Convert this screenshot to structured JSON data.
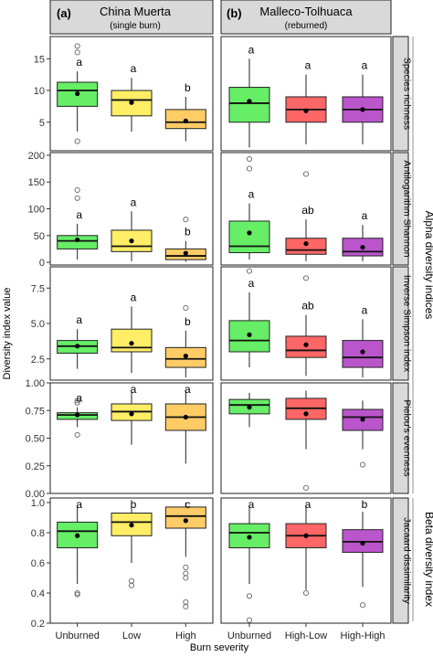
{
  "figure": {
    "x_title": "Burn severity",
    "y_title": "Diversity index value",
    "alpha_group_label": "Alpha diversity indices",
    "beta_group_label": "Beta diversity index"
  },
  "columns": [
    {
      "tag": "(a)",
      "name": "China Muerta",
      "subtitle": "(single burn)",
      "categories": [
        "Unburned",
        "Low",
        "High"
      ],
      "colors": [
        "#66ee66",
        "#ffee66",
        "#ffcc66"
      ]
    },
    {
      "tag": "(b)",
      "name": "Malleco-Tolhuaca",
      "subtitle": "(reburned)",
      "categories": [
        "Unburned",
        "High-Low",
        "High-High"
      ],
      "colors": [
        "#66ee66",
        "#ff6666",
        "#bb55cc"
      ]
    }
  ],
  "chart_data": [
    {
      "type": "box",
      "row": "Species richness",
      "y_ticks": [
        5,
        10,
        15
      ],
      "ylim": [
        0.5,
        18.5
      ],
      "panels": [
        {
          "boxes": [
            {
              "category": "Unburned",
              "q1": 7.5,
              "median": 10,
              "q3": 11.3,
              "whisker_low": 3.5,
              "whisker_high": 13,
              "mean": 9.5,
              "outliers": [
                2,
                16,
                17
              ],
              "letter": "a"
            },
            {
              "category": "Low",
              "q1": 6,
              "median": 8.5,
              "q3": 10,
              "whisker_low": 3.5,
              "whisker_high": 12,
              "mean": 8.1,
              "outliers": [],
              "letter": "a"
            },
            {
              "category": "High",
              "q1": 4,
              "median": 5,
              "q3": 7,
              "whisker_low": 2,
              "whisker_high": 9,
              "mean": 5.2,
              "outliers": [],
              "letter": "b"
            }
          ]
        },
        {
          "boxes": [
            {
              "category": "Unburned",
              "q1": 5,
              "median": 8,
              "q3": 10.5,
              "whisker_low": 1,
              "whisker_high": 15,
              "mean": 8.3,
              "outliers": [],
              "letter": "a"
            },
            {
              "category": "High-Low",
              "q1": 5,
              "median": 7,
              "q3": 9,
              "whisker_low": 1.5,
              "whisker_high": 12.5,
              "mean": 6.8,
              "outliers": [],
              "letter": "a"
            },
            {
              "category": "High-High",
              "q1": 5,
              "median": 7,
              "q3": 9,
              "whisker_low": 1.5,
              "whisker_high": 12.5,
              "mean": 7,
              "outliers": [],
              "letter": "a"
            }
          ]
        }
      ]
    },
    {
      "type": "box",
      "row": "Antilogarithm Shannon",
      "y_ticks": [
        0,
        50,
        100,
        150,
        200
      ],
      "ylim": [
        -5,
        205
      ],
      "panels": [
        {
          "boxes": [
            {
              "category": "Unburned",
              "q1": 25,
              "median": 40,
              "q3": 50,
              "whisker_low": 5,
              "whisker_high": 72,
              "mean": 42,
              "outliers": [
                120,
                135
              ],
              "letter": "a"
            },
            {
              "category": "Low",
              "q1": 20,
              "median": 30,
              "q3": 60,
              "whisker_low": 2,
              "whisker_high": 95,
              "mean": 40,
              "outliers": [],
              "letter": "a"
            },
            {
              "category": "High",
              "q1": 5,
              "median": 12,
              "q3": 25,
              "whisker_low": 1,
              "whisker_high": 40,
              "mean": 17,
              "outliers": [
                80
              ],
              "letter": "b"
            }
          ]
        },
        {
          "boxes": [
            {
              "category": "Unburned",
              "q1": 18,
              "median": 30,
              "q3": 77,
              "whisker_low": 5,
              "whisker_high": 110,
              "mean": 55,
              "outliers": [
                175,
                193
              ],
              "letter": "a"
            },
            {
              "category": "High-Low",
              "q1": 15,
              "median": 23,
              "q3": 45,
              "whisker_low": 2,
              "whisker_high": 80,
              "mean": 35,
              "outliers": [
                165
              ],
              "letter": "ab"
            },
            {
              "category": "High-High",
              "q1": 12,
              "median": 20,
              "q3": 45,
              "whisker_low": 2,
              "whisker_high": 70,
              "mean": 28,
              "outliers": [],
              "letter": "a"
            }
          ]
        }
      ]
    },
    {
      "type": "box",
      "row": "Inverse Simpson index",
      "y_ticks": [
        2.5,
        5.0,
        7.5
      ],
      "y_tick_labels": [
        "2.5",
        "5.0",
        "7.5"
      ],
      "ylim": [
        1,
        9
      ],
      "panels": [
        {
          "boxes": [
            {
              "category": "Unburned",
              "q1": 2.9,
              "median": 3.4,
              "q3": 3.8,
              "whisker_low": 1.8,
              "whisker_high": 4.6,
              "mean": 3.4,
              "outliers": [],
              "letter": "a"
            },
            {
              "category": "Low",
              "q1": 3.0,
              "median": 3.3,
              "q3": 4.6,
              "whisker_low": 1.5,
              "whisker_high": 6.2,
              "mean": 3.6,
              "outliers": [],
              "letter": "a"
            },
            {
              "category": "High",
              "q1": 1.9,
              "median": 2.5,
              "q3": 3.3,
              "whisker_low": 1.2,
              "whisker_high": 4.5,
              "mean": 2.7,
              "outliers": [
                6.1
              ],
              "letter": "b"
            }
          ]
        },
        {
          "boxes": [
            {
              "category": "Unburned",
              "q1": 3.0,
              "median": 3.8,
              "q3": 5.2,
              "whisker_low": 1.9,
              "whisker_high": 7.2,
              "mean": 4.2,
              "outliers": [
                8.7
              ],
              "letter": "a"
            },
            {
              "category": "High-Low",
              "q1": 2.6,
              "median": 3.1,
              "q3": 4.1,
              "whisker_low": 1.3,
              "whisker_high": 5.6,
              "mean": 3.5,
              "outliers": [
                8.2
              ],
              "letter": "ab"
            },
            {
              "category": "High-High",
              "q1": 1.9,
              "median": 2.6,
              "q3": 3.8,
              "whisker_low": 1.2,
              "whisker_high": 5.3,
              "mean": 3.0,
              "outliers": [],
              "letter": "a"
            }
          ]
        }
      ]
    },
    {
      "type": "box",
      "row": "Pielou's evenness",
      "y_ticks": [
        0.0,
        0.25,
        0.5,
        0.75,
        1.0
      ],
      "y_tick_labels": [
        "0.00",
        "0.25",
        "0.50",
        "0.75",
        "1.00"
      ],
      "ylim": [
        0,
        1
      ],
      "panels": [
        {
          "boxes": [
            {
              "category": "Unburned",
              "q1": 0.67,
              "median": 0.71,
              "q3": 0.73,
              "whisker_low": 0.6,
              "whisker_high": 0.78,
              "mean": 0.71,
              "outliers": [
                0.53,
                0.82,
                0.84
              ],
              "letter": "a"
            },
            {
              "category": "Low",
              "q1": 0.66,
              "median": 0.74,
              "q3": 0.81,
              "whisker_low": 0.44,
              "whisker_high": 0.92,
              "mean": 0.72,
              "outliers": [],
              "letter": "a"
            },
            {
              "category": "High",
              "q1": 0.57,
              "median": 0.69,
              "q3": 0.81,
              "whisker_low": 0.27,
              "whisker_high": 0.93,
              "mean": 0.69,
              "outliers": [],
              "letter": "a"
            }
          ]
        },
        {
          "boxes": [
            {
              "category": "Unburned",
              "q1": 0.72,
              "median": 0.8,
              "q3": 0.85,
              "whisker_low": 0.6,
              "whisker_high": 0.91,
              "mean": 0.78,
              "outliers": [],
              "letter": ""
            },
            {
              "category": "High-Low",
              "q1": 0.67,
              "median": 0.77,
              "q3": 0.86,
              "whisker_low": 0.4,
              "whisker_high": 0.93,
              "mean": 0.72,
              "outliers": [
                0.05
              ],
              "letter": ""
            },
            {
              "category": "High-High",
              "q1": 0.57,
              "median": 0.69,
              "q3": 0.76,
              "whisker_low": 0.4,
              "whisker_high": 0.84,
              "mean": 0.67,
              "outliers": [
                0.26
              ],
              "letter": ""
            }
          ]
        }
      ]
    },
    {
      "type": "box",
      "row": "Jacaard dissimilarity",
      "y_ticks": [
        0.2,
        0.4,
        0.6,
        0.8,
        1.0
      ],
      "y_tick_labels": [
        "0.2",
        "0.4",
        "0.6",
        "0.8",
        "1.0"
      ],
      "ylim": [
        0.2,
        1.03
      ],
      "panels": [
        {
          "boxes": [
            {
              "category": "Unburned",
              "q1": 0.7,
              "median": 0.81,
              "q3": 0.87,
              "whisker_low": 0.46,
              "whisker_high": 0.98,
              "mean": 0.78,
              "outliers": [
                0.4,
                0.39
              ],
              "letter": "a"
            },
            {
              "category": "Low",
              "q1": 0.78,
              "median": 0.87,
              "q3": 0.93,
              "whisker_low": 0.6,
              "whisker_high": 0.99,
              "mean": 0.85,
              "outliers": [
                0.48,
                0.45
              ],
              "letter": "b"
            },
            {
              "category": "High",
              "q1": 0.83,
              "median": 0.91,
              "q3": 0.97,
              "whisker_low": 0.64,
              "whisker_high": 1.0,
              "mean": 0.88,
              "outliers": [
                0.57,
                0.53,
                0.5,
                0.34,
                0.31
              ],
              "letter": "c"
            }
          ]
        },
        {
          "boxes": [
            {
              "category": "Unburned",
              "q1": 0.7,
              "median": 0.8,
              "q3": 0.86,
              "whisker_low": 0.46,
              "whisker_high": 0.98,
              "mean": 0.77,
              "outliers": [
                0.38,
                0.22
              ],
              "letter": "a"
            },
            {
              "category": "High-Low",
              "q1": 0.7,
              "median": 0.78,
              "q3": 0.86,
              "whisker_low": 0.42,
              "whisker_high": 0.98,
              "mean": 0.78,
              "outliers": [
                0.4
              ],
              "letter": "a"
            },
            {
              "category": "High-High",
              "q1": 0.67,
              "median": 0.74,
              "q3": 0.82,
              "whisker_low": 0.44,
              "whisker_high": 0.94,
              "mean": 0.73,
              "outliers": [
                0.32
              ],
              "letter": "b"
            }
          ]
        }
      ]
    }
  ]
}
